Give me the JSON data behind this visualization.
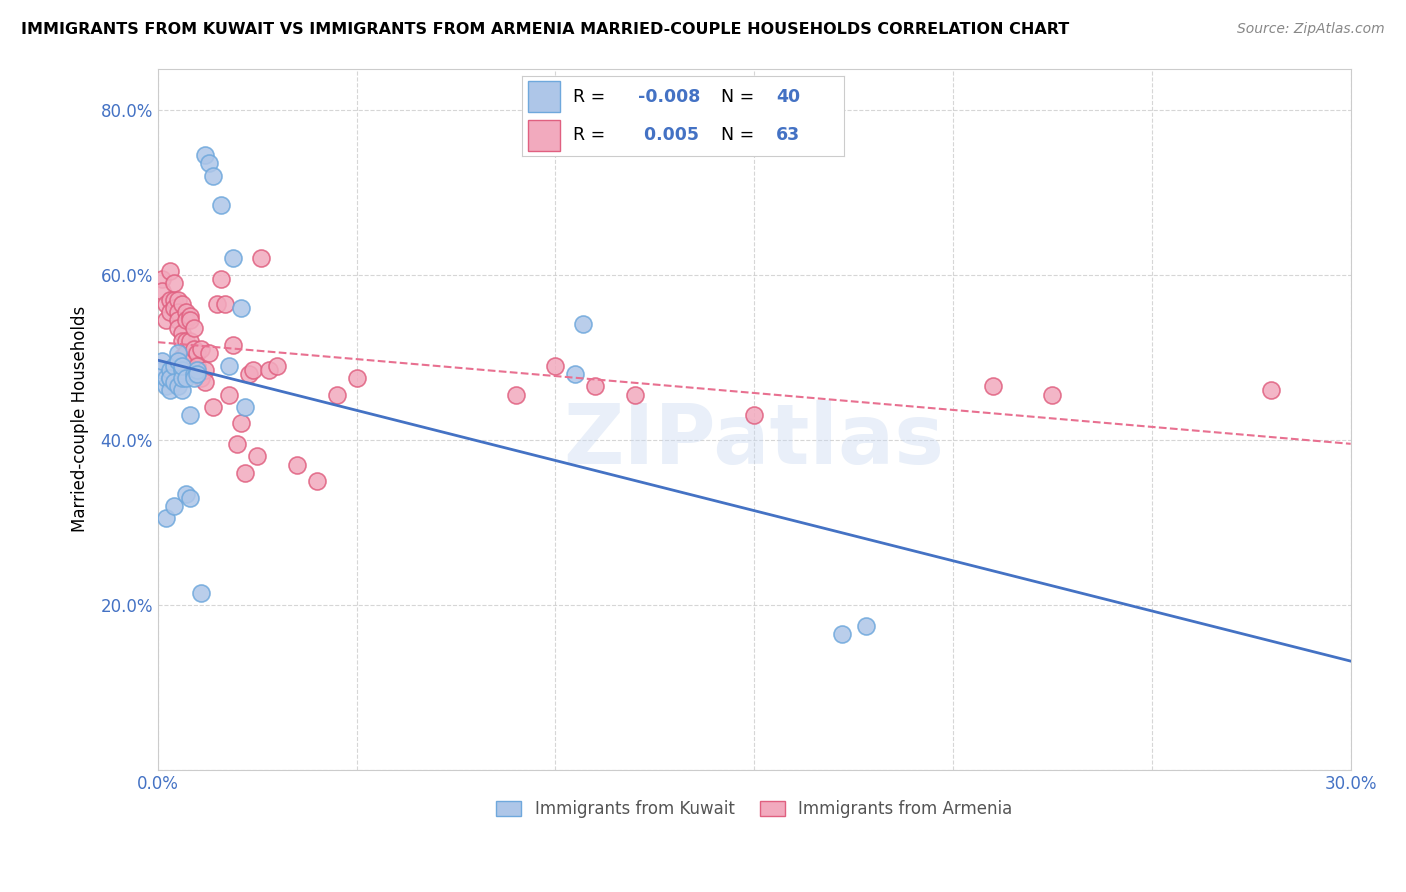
{
  "title": "IMMIGRANTS FROM KUWAIT VS IMMIGRANTS FROM ARMENIA MARRIED-COUPLE HOUSEHOLDS CORRELATION CHART",
  "source": "Source: ZipAtlas.com",
  "ylabel": "Married-couple Households",
  "xlim": [
    0.0,
    0.3
  ],
  "ylim": [
    0.0,
    0.85
  ],
  "yticks": [
    0.0,
    0.2,
    0.4,
    0.6,
    0.8
  ],
  "ytick_labels": [
    "",
    "20.0%",
    "40.0%",
    "60.0%",
    "80.0%"
  ],
  "xticks": [
    0.0,
    0.05,
    0.1,
    0.15,
    0.2,
    0.25,
    0.3
  ],
  "xtick_labels": [
    "0.0%",
    "",
    "",
    "",
    "",
    "",
    "30.0%"
  ],
  "legend_label1": "Immigrants from Kuwait",
  "legend_label2": "Immigrants from Armenia",
  "R1": -0.008,
  "N1": 40,
  "R2": 0.005,
  "N2": 63,
  "color_kuwait": "#aec6e8",
  "color_armenia": "#f2aabe",
  "edge_color_kuwait": "#6fa8dc",
  "edge_color_armenia": "#e06080",
  "line_color_kuwait": "#4472c4",
  "line_color_armenia": "#e87090",
  "watermark": "ZIPatlas",
  "kuwait_x": [
    0.001,
    0.001,
    0.002,
    0.002,
    0.002,
    0.003,
    0.003,
    0.003,
    0.003,
    0.004,
    0.004,
    0.004,
    0.005,
    0.005,
    0.005,
    0.006,
    0.006,
    0.006,
    0.006,
    0.007,
    0.007,
    0.008,
    0.008,
    0.009,
    0.009,
    0.01,
    0.01,
    0.011,
    0.012,
    0.013,
    0.014,
    0.016,
    0.018,
    0.019,
    0.021,
    0.022,
    0.105,
    0.107,
    0.172,
    0.178
  ],
  "kuwait_y": [
    0.485,
    0.495,
    0.305,
    0.465,
    0.475,
    0.475,
    0.46,
    0.485,
    0.475,
    0.49,
    0.47,
    0.32,
    0.505,
    0.465,
    0.495,
    0.46,
    0.485,
    0.475,
    0.49,
    0.475,
    0.335,
    0.43,
    0.33,
    0.48,
    0.475,
    0.485,
    0.48,
    0.215,
    0.745,
    0.735,
    0.72,
    0.685,
    0.49,
    0.62,
    0.56,
    0.44,
    0.48,
    0.54,
    0.165,
    0.175
  ],
  "armenia_x": [
    0.001,
    0.001,
    0.002,
    0.002,
    0.003,
    0.003,
    0.003,
    0.004,
    0.004,
    0.004,
    0.005,
    0.005,
    0.005,
    0.005,
    0.006,
    0.006,
    0.006,
    0.006,
    0.007,
    0.007,
    0.007,
    0.007,
    0.008,
    0.008,
    0.008,
    0.008,
    0.009,
    0.009,
    0.009,
    0.01,
    0.01,
    0.011,
    0.011,
    0.012,
    0.012,
    0.013,
    0.014,
    0.015,
    0.016,
    0.017,
    0.018,
    0.019,
    0.02,
    0.021,
    0.022,
    0.023,
    0.024,
    0.025,
    0.026,
    0.028,
    0.03,
    0.035,
    0.04,
    0.045,
    0.05,
    0.09,
    0.1,
    0.11,
    0.12,
    0.15,
    0.21,
    0.225,
    0.28
  ],
  "armenia_y": [
    0.595,
    0.58,
    0.565,
    0.545,
    0.57,
    0.555,
    0.605,
    0.57,
    0.56,
    0.59,
    0.57,
    0.555,
    0.545,
    0.535,
    0.53,
    0.52,
    0.5,
    0.565,
    0.555,
    0.545,
    0.52,
    0.505,
    0.55,
    0.545,
    0.52,
    0.495,
    0.535,
    0.51,
    0.485,
    0.505,
    0.49,
    0.51,
    0.475,
    0.485,
    0.47,
    0.505,
    0.44,
    0.565,
    0.595,
    0.565,
    0.455,
    0.515,
    0.395,
    0.42,
    0.36,
    0.48,
    0.485,
    0.38,
    0.62,
    0.485,
    0.49,
    0.37,
    0.35,
    0.455,
    0.475,
    0.455,
    0.49,
    0.465,
    0.455,
    0.43,
    0.465,
    0.455,
    0.46
  ]
}
